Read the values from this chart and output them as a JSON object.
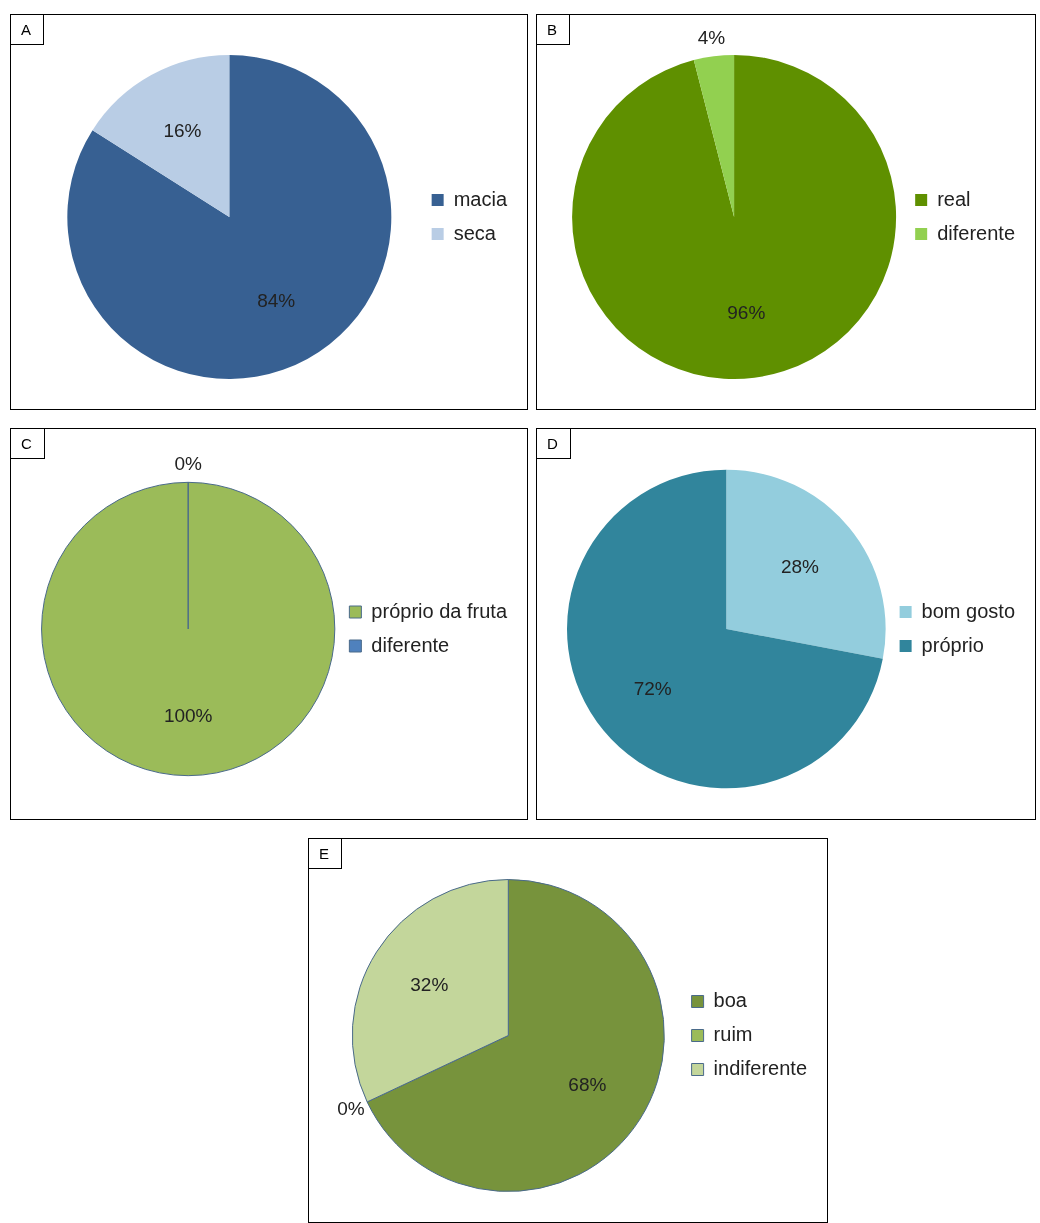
{
  "chart_data": [
    {
      "type": "pie",
      "title": "A",
      "categories": [
        "macia",
        "seca"
      ],
      "values": [
        84,
        16
      ],
      "colors": [
        "#376092",
        "#b9cde5"
      ],
      "value_labels": [
        "84%",
        "16%"
      ],
      "legend": "right"
    },
    {
      "type": "pie",
      "title": "B",
      "categories": [
        "real",
        "diferente"
      ],
      "values": [
        96,
        4
      ],
      "colors": [
        "#5f9000",
        "#92d050"
      ],
      "value_labels": [
        "96%",
        "4%"
      ],
      "legend": "right"
    },
    {
      "type": "pie",
      "title": "C",
      "categories": [
        "próprio da fruta",
        "diferente"
      ],
      "values": [
        100,
        0
      ],
      "colors": [
        "#9bbb59",
        "#4f81bd"
      ],
      "value_labels": [
        "100%",
        "0%"
      ],
      "legend": "right"
    },
    {
      "type": "pie",
      "title": "D",
      "categories": [
        "bom gosto",
        "próprio"
      ],
      "values": [
        28,
        72
      ],
      "colors": [
        "#93cddd",
        "#31859c"
      ],
      "value_labels": [
        "28%",
        "72%"
      ],
      "legend": "right"
    },
    {
      "type": "pie",
      "title": "E",
      "categories": [
        "boa",
        "ruim",
        "indiferente"
      ],
      "values": [
        68,
        0,
        32
      ],
      "colors": [
        "#77933c",
        "#9bbb59",
        "#c3d69b"
      ],
      "value_labels": [
        "68%",
        "0%",
        "32%"
      ],
      "legend": "right"
    }
  ]
}
